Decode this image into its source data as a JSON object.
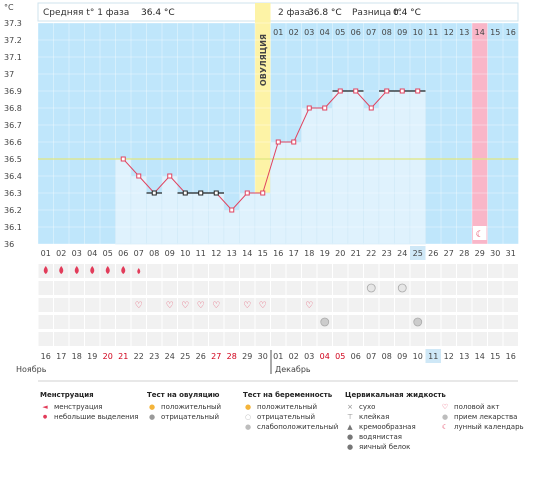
{
  "header": {
    "phase1_label": "Средняя t° 1 фаза",
    "phase1_value": "36.4 °C",
    "phase2_label": "2 фаза",
    "phase2_value": "36.8 °C",
    "diff_label": "Разница t°",
    "diff_value": "0.4 °C",
    "ovulation_label": "ОВУЛЯЦИЯ"
  },
  "chart_data": {
    "type": "line",
    "ylabel": "°C",
    "ylim": [
      36.0,
      37.3
    ],
    "yticks": [
      "37.3",
      "37.2",
      "37.1",
      "37",
      "36.9",
      "36.8",
      "36.7",
      "36.6",
      "36.5",
      "36.4",
      "36.3",
      "36.2",
      "36.1",
      "36"
    ],
    "cover_line": 36.5,
    "cycle_days": [
      "01",
      "02",
      "03",
      "04",
      "05",
      "06",
      "07",
      "08",
      "09",
      "10",
      "11",
      "12",
      "13",
      "14",
      "15",
      "16",
      "17",
      "18",
      "19",
      "20",
      "21",
      "22",
      "23",
      "24",
      "25",
      "26",
      "27",
      "28",
      "29",
      "30",
      "31"
    ],
    "phase2_days": [
      "01",
      "02",
      "03",
      "04",
      "05",
      "06",
      "07",
      "08",
      "09",
      "10",
      "11",
      "12",
      "13",
      "14",
      "15",
      "16"
    ],
    "highlight_day_index": 25,
    "ovulation_day_index": 15,
    "last_day_index": 29,
    "last_day_label": "14",
    "calendar_dates": [
      "16",
      "17",
      "18",
      "19",
      "20",
      "21",
      "22",
      "23",
      "24",
      "25",
      "26",
      "27",
      "28",
      "29",
      "30",
      "01",
      "02",
      "03",
      "04",
      "05",
      "06",
      "07",
      "08",
      "09",
      "10",
      "11",
      "12",
      "13",
      "14",
      "15",
      "16"
    ],
    "weekend_indices": [
      4,
      5,
      11,
      12,
      18,
      19
    ],
    "highlight_date_index": 25,
    "month_left": "Ноябрь",
    "month_right": "Декабрь",
    "temperatures": [
      {
        "day": 6,
        "t": 36.5
      },
      {
        "day": 7,
        "t": 36.4
      },
      {
        "day": 8,
        "t": 36.3,
        "excluded": true
      },
      {
        "day": 9,
        "t": 36.4
      },
      {
        "day": 10,
        "t": 36.3,
        "excluded": true
      },
      {
        "day": 11,
        "t": 36.3,
        "excluded": true
      },
      {
        "day": 12,
        "t": 36.3,
        "excluded": true
      },
      {
        "day": 13,
        "t": 36.2
      },
      {
        "day": 14,
        "t": 36.3
      },
      {
        "day": 15,
        "t": 36.3
      },
      {
        "day": 16,
        "t": 36.6
      },
      {
        "day": 17,
        "t": 36.6
      },
      {
        "day": 18,
        "t": 36.8
      },
      {
        "day": 19,
        "t": 36.8
      },
      {
        "day": 20,
        "t": 36.9
      },
      {
        "day": 21,
        "t": 36.9
      },
      {
        "day": 22,
        "t": 36.8
      },
      {
        "day": 23,
        "t": 36.9
      },
      {
        "day": 24,
        "t": 36.9
      },
      {
        "day": 25,
        "t": 36.9
      }
    ],
    "coverline_segments": [
      {
        "from": 8,
        "to": 8
      },
      {
        "from": 10,
        "to": 12
      },
      {
        "from": 20,
        "to": 21
      },
      {
        "from": 23,
        "to": 25
      }
    ],
    "menstruation_days": [
      1,
      2,
      3,
      4,
      5,
      6
    ],
    "small_discharge_days": [
      7
    ],
    "intercourse_days": [
      7,
      9,
      10,
      11,
      12,
      14,
      15,
      18
    ],
    "ovulation_test_negative_days": [
      22,
      24
    ],
    "pregnancy_test_weak_days": [
      19,
      25
    ],
    "moon_day": 29,
    "row_colors": {
      "plot_bg": "#bfe6fb",
      "bar_fill": "#dff2fd",
      "ovulation": "#fdf3a6",
      "last_day": "#f9b6c8",
      "highlight": "#cfe8f7",
      "line": "#e0435f",
      "cover": "#e0e77f"
    }
  },
  "legend": {
    "menstruation": {
      "title": "Менструация",
      "items": [
        "менструация",
        "небольшие выделения"
      ]
    },
    "ovulation_test": {
      "title": "Тест на овуляцию",
      "items": [
        "положительный",
        "отрицательный"
      ]
    },
    "pregnancy_test": {
      "title": "Тест на беременность",
      "items": [
        "положительный",
        "отрицательный",
        "слабоположительный"
      ]
    },
    "cervical": {
      "title": "Цервикальная жидкость",
      "items": [
        "сухо",
        "клейкая",
        "кремообразная",
        "водянистая",
        "яичный белок"
      ]
    },
    "other": {
      "items": [
        "половой акт",
        "прием лекарства",
        "лунный календарь"
      ]
    }
  }
}
